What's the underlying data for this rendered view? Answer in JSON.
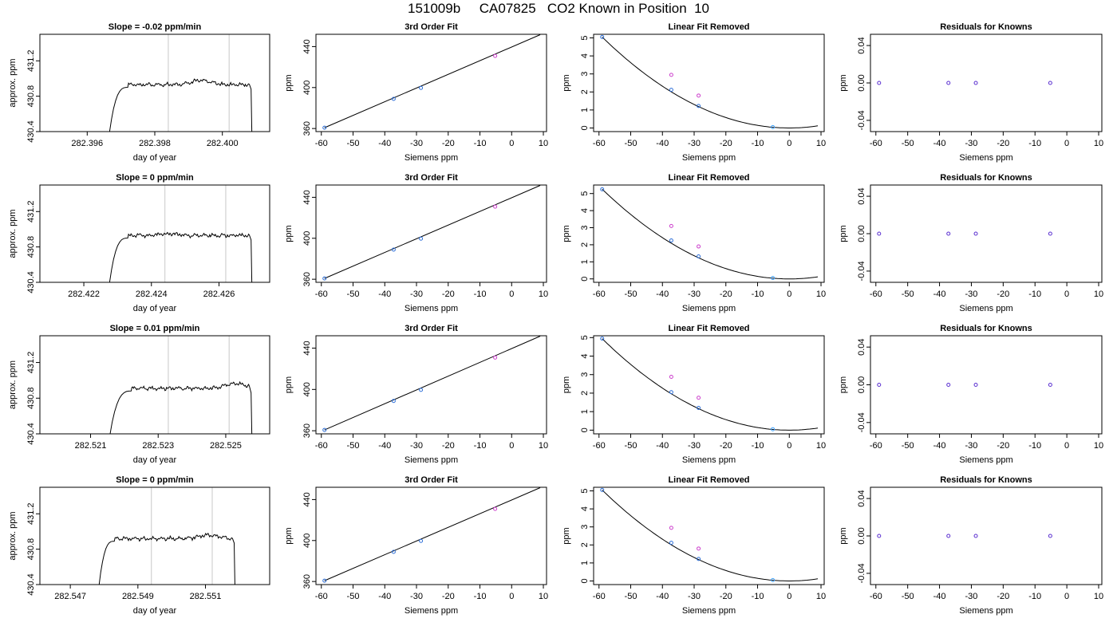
{
  "figure_title": "151009b     CA07825   CO2 Known in Position  10",
  "chart_data": [
    {
      "row": 0,
      "type": "line",
      "title": "Slope =  -0.02  ppm/min",
      "xlabel": "day of year",
      "ylabel": "approx. ppm",
      "xlim": [
        282.3946,
        282.4014
      ],
      "ylim": [
        430.4,
        431.5
      ],
      "xticks": [
        282.396,
        282.398,
        282.4
      ],
      "xticklabels": [
        "282.396",
        "282.398",
        "282.400"
      ],
      "yticks": [
        430.4,
        430.8,
        431.2
      ],
      "yticklabels": [
        "430.4",
        "430.8",
        "431.2"
      ],
      "vlines": [
        282.3984,
        282.4002
      ],
      "trace": {
        "x_start": 282.3966,
        "x_rise": 282.3969,
        "x_plateau": 282.3972,
        "x_end": 282.4008,
        "x_drop": 282.40085,
        "level": 430.93,
        "bump_x": 282.3994,
        "bump": 0.05,
        "seed": 1
      },
      "grid": false
    },
    {
      "row": 0,
      "type": "scatter",
      "title": "3rd Order Fit",
      "xlabel": "Siemens ppm",
      "ylabel": "ppm",
      "xlim": [
        -61.7,
        11
      ],
      "ylim": [
        357,
        452
      ],
      "xticks": [
        -60,
        -50,
        -40,
        -30,
        -20,
        -10,
        0,
        10
      ],
      "xticklabels": [
        "-60",
        "-50",
        "-40",
        "-30",
        "-20",
        "-10",
        "0",
        "10"
      ],
      "yticks": [
        360,
        400,
        440
      ],
      "yticklabels": [
        "360",
        "400",
        "440"
      ],
      "line": [
        [
          -59,
          360.8
        ],
        [
          9,
          451.6
        ]
      ],
      "points": [
        {
          "x": -59,
          "y": 360.8,
          "color": "#2d6fd8"
        },
        {
          "x": -37.2,
          "y": 388.9,
          "color": "#2d6fd8"
        },
        {
          "x": -28.6,
          "y": 399.6,
          "color": "#2d6fd8"
        },
        {
          "x": -5.2,
          "y": 430.9,
          "color": "#cc3fcc"
        }
      ],
      "grid": false
    },
    {
      "row": 0,
      "type": "scatter",
      "title": "Linear Fit Removed",
      "xlabel": "Siemens ppm",
      "ylabel": "ppm",
      "xlim": [
        -61.7,
        11
      ],
      "ylim": [
        -0.2,
        5.2
      ],
      "xticks": [
        -60,
        -50,
        -40,
        -30,
        -20,
        -10,
        0,
        10
      ],
      "xticklabels": [
        "-60",
        "-50",
        "-40",
        "-30",
        "-20",
        "-10",
        "0",
        "10"
      ],
      "yticks": [
        0,
        1,
        2,
        3,
        4,
        5
      ],
      "yticklabels": [
        "0",
        "1",
        "2",
        "3",
        "4",
        "5"
      ],
      "curve": {
        "a": 0.00145,
        "b": 0,
        "c": 0,
        "xmin": -59,
        "xmax": 9
      },
      "points": [
        {
          "x": -59,
          "y": 5.05,
          "color": "#2d6fd8"
        },
        {
          "x": -37.2,
          "y": 2.12,
          "color": "#2d6fd8"
        },
        {
          "x": -28.6,
          "y": 1.22,
          "color": "#2d6fd8"
        },
        {
          "x": -5.2,
          "y": 0.05,
          "color": "#3aa0ff"
        },
        {
          "x": -37.2,
          "y": 2.95,
          "color": "#cc3fcc"
        },
        {
          "x": -28.6,
          "y": 1.8,
          "color": "#cc3fcc"
        }
      ],
      "grid": false
    },
    {
      "row": 0,
      "type": "scatter",
      "title": "Residuals for Knowns",
      "xlabel": "Siemens ppm",
      "ylabel": "ppm",
      "xlim": [
        -61.7,
        11
      ],
      "ylim": [
        -0.052,
        0.052
      ],
      "xticks": [
        -60,
        -50,
        -40,
        -30,
        -20,
        -10,
        0,
        10
      ],
      "xticklabels": [
        "-60",
        "-50",
        "-40",
        "-30",
        "-20",
        "-10",
        "0",
        "10"
      ],
      "yticks": [
        -0.04,
        0,
        0.04
      ],
      "yticklabels": [
        "-0.04",
        "0.00",
        "0.04"
      ],
      "points": [
        {
          "x": -59,
          "y": 0,
          "color": "#5a2fd0"
        },
        {
          "x": -37.2,
          "y": 0,
          "color": "#5a2fd0"
        },
        {
          "x": -28.6,
          "y": 0,
          "color": "#5a2fd0"
        },
        {
          "x": -5.2,
          "y": 0,
          "color": "#5a2fd0"
        }
      ],
      "grid": false
    },
    {
      "row": 1,
      "type": "line",
      "title": "Slope =  0  ppm/min",
      "xlabel": "day of year",
      "ylabel": "approx. ppm",
      "xlim": [
        282.4207,
        282.4275
      ],
      "ylim": [
        430.4,
        431.5
      ],
      "xticks": [
        282.422,
        282.424,
        282.426
      ],
      "xticklabels": [
        "282.422",
        "282.424",
        "282.426"
      ],
      "yticks": [
        430.4,
        430.8,
        431.2
      ],
      "yticklabels": [
        "430.4",
        "430.8",
        "431.2"
      ],
      "vlines": [
        282.4244,
        282.4262
      ],
      "trace": {
        "x_start": 282.4227,
        "x_rise": 282.4229,
        "x_plateau": 282.4233,
        "x_end": 282.4269,
        "x_drop": 282.42695,
        "level": 430.93,
        "bump_x": 282.4245,
        "bump": 0.02,
        "seed": 2
      },
      "grid": false
    },
    {
      "row": 1,
      "type": "scatter",
      "title": "3rd Order Fit",
      "xlabel": "Siemens ppm",
      "ylabel": "ppm",
      "xlim": [
        -61.7,
        11
      ],
      "ylim": [
        357,
        452
      ],
      "xticks": [
        -60,
        -50,
        -40,
        -30,
        -20,
        -10,
        0,
        10
      ],
      "xticklabels": [
        "-60",
        "-50",
        "-40",
        "-30",
        "-20",
        "-10",
        "0",
        "10"
      ],
      "yticks": [
        360,
        400,
        440
      ],
      "yticklabels": [
        "360",
        "400",
        "440"
      ],
      "line": [
        [
          -59,
          360.8
        ],
        [
          9,
          451.6
        ]
      ],
      "points": [
        {
          "x": -59,
          "y": 360.8,
          "color": "#2d6fd8"
        },
        {
          "x": -37.2,
          "y": 388.9,
          "color": "#2d6fd8"
        },
        {
          "x": -28.6,
          "y": 399.6,
          "color": "#2d6fd8"
        },
        {
          "x": -5.2,
          "y": 430.9,
          "color": "#cc3fcc"
        }
      ],
      "grid": false
    },
    {
      "row": 1,
      "type": "scatter",
      "title": "Linear Fit Removed",
      "xlabel": "Siemens ppm",
      "ylabel": "ppm",
      "xlim": [
        -61.7,
        11
      ],
      "ylim": [
        -0.2,
        5.5
      ],
      "xticks": [
        -60,
        -50,
        -40,
        -30,
        -20,
        -10,
        0,
        10
      ],
      "xticklabels": [
        "-60",
        "-50",
        "-40",
        "-30",
        "-20",
        "-10",
        "0",
        "10"
      ],
      "yticks": [
        0,
        1,
        2,
        3,
        4,
        5
      ],
      "yticklabels": [
        "0",
        "1",
        "2",
        "3",
        "4",
        "5"
      ],
      "curve": {
        "a": 0.00151,
        "b": 0,
        "c": 0,
        "xmin": -59,
        "xmax": 9
      },
      "points": [
        {
          "x": -59,
          "y": 5.25,
          "color": "#2d6fd8"
        },
        {
          "x": -37.2,
          "y": 2.25,
          "color": "#2d6fd8"
        },
        {
          "x": -28.6,
          "y": 1.32,
          "color": "#2d6fd8"
        },
        {
          "x": -5.2,
          "y": 0.05,
          "color": "#3aa0ff"
        },
        {
          "x": -37.2,
          "y": 3.1,
          "color": "#cc3fcc"
        },
        {
          "x": -28.6,
          "y": 1.9,
          "color": "#cc3fcc"
        }
      ],
      "grid": false
    },
    {
      "row": 1,
      "type": "scatter",
      "title": "Residuals for Knowns",
      "xlabel": "Siemens ppm",
      "ylabel": "ppm",
      "xlim": [
        -61.7,
        11
      ],
      "ylim": [
        -0.052,
        0.052
      ],
      "xticks": [
        -60,
        -50,
        -40,
        -30,
        -20,
        -10,
        0,
        10
      ],
      "xticklabels": [
        "-60",
        "-50",
        "-40",
        "-30",
        "-20",
        "-10",
        "0",
        "10"
      ],
      "yticks": [
        -0.04,
        0,
        0.04
      ],
      "yticklabels": [
        "-0.04",
        "0.00",
        "0.04"
      ],
      "points": [
        {
          "x": -59,
          "y": 0,
          "color": "#5a2fd0"
        },
        {
          "x": -37.2,
          "y": 0,
          "color": "#5a2fd0"
        },
        {
          "x": -28.6,
          "y": 0,
          "color": "#5a2fd0"
        },
        {
          "x": -5.2,
          "y": 0,
          "color": "#5a2fd0"
        }
      ],
      "grid": false
    },
    {
      "row": 2,
      "type": "line",
      "title": "Slope =  0.01  ppm/min",
      "xlabel": "day of year",
      "ylabel": "approx. ppm",
      "xlim": [
        282.5195,
        282.5263
      ],
      "ylim": [
        430.4,
        431.5
      ],
      "xticks": [
        282.521,
        282.523,
        282.525
      ],
      "xticklabels": [
        "282.521",
        "282.523",
        "282.525"
      ],
      "yticks": [
        430.4,
        430.8,
        431.2
      ],
      "yticklabels": [
        "430.4",
        "430.8",
        "431.2"
      ],
      "vlines": [
        282.5233,
        282.5251
      ],
      "trace": {
        "x_start": 282.5215,
        "x_rise": 282.5218,
        "x_plateau": 282.5222,
        "x_end": 282.5257,
        "x_drop": 282.52575,
        "level": 430.91,
        "bump_x": 282.5253,
        "bump": 0.06,
        "seed": 3
      },
      "grid": false
    },
    {
      "row": 2,
      "type": "scatter",
      "title": "3rd Order Fit",
      "xlabel": "Siemens ppm",
      "ylabel": "ppm",
      "xlim": [
        -61.7,
        11
      ],
      "ylim": [
        357,
        452
      ],
      "xticks": [
        -60,
        -50,
        -40,
        -30,
        -20,
        -10,
        0,
        10
      ],
      "xticklabels": [
        "-60",
        "-50",
        "-40",
        "-30",
        "-20",
        "-10",
        "0",
        "10"
      ],
      "yticks": [
        360,
        400,
        440
      ],
      "yticklabels": [
        "360",
        "400",
        "440"
      ],
      "line": [
        [
          -59,
          360.8
        ],
        [
          9,
          451.6
        ]
      ],
      "points": [
        {
          "x": -59,
          "y": 360.8,
          "color": "#2d6fd8"
        },
        {
          "x": -37.2,
          "y": 388.9,
          "color": "#2d6fd8"
        },
        {
          "x": -28.6,
          "y": 399.6,
          "color": "#2d6fd8"
        },
        {
          "x": -5.2,
          "y": 430.9,
          "color": "#cc3fcc"
        }
      ],
      "grid": false
    },
    {
      "row": 2,
      "type": "scatter",
      "title": "Linear Fit Removed",
      "xlabel": "Siemens ppm",
      "ylabel": "ppm",
      "xlim": [
        -61.7,
        11
      ],
      "ylim": [
        -0.2,
        5.1
      ],
      "xticks": [
        -60,
        -50,
        -40,
        -30,
        -20,
        -10,
        0,
        10
      ],
      "xticklabels": [
        "-60",
        "-50",
        "-40",
        "-30",
        "-20",
        "-10",
        "0",
        "10"
      ],
      "yticks": [
        0,
        1,
        2,
        3,
        4,
        5
      ],
      "yticklabels": [
        "0",
        "1",
        "2",
        "3",
        "4",
        "5"
      ],
      "curve": {
        "a": 0.00142,
        "b": 0,
        "c": 0,
        "xmin": -59,
        "xmax": 9
      },
      "points": [
        {
          "x": -59,
          "y": 4.95,
          "color": "#2d6fd8"
        },
        {
          "x": -37.2,
          "y": 2.05,
          "color": "#2d6fd8"
        },
        {
          "x": -28.6,
          "y": 1.2,
          "color": "#2d6fd8"
        },
        {
          "x": -5.2,
          "y": 0.05,
          "color": "#3aa0ff"
        },
        {
          "x": -37.2,
          "y": 2.88,
          "color": "#cc3fcc"
        },
        {
          "x": -28.6,
          "y": 1.75,
          "color": "#cc3fcc"
        }
      ],
      "grid": false
    },
    {
      "row": 2,
      "type": "scatter",
      "title": "Residuals for Knowns",
      "xlabel": "Siemens ppm",
      "ylabel": "ppm",
      "xlim": [
        -61.7,
        11
      ],
      "ylim": [
        -0.052,
        0.052
      ],
      "xticks": [
        -60,
        -50,
        -40,
        -30,
        -20,
        -10,
        0,
        10
      ],
      "xticklabels": [
        "-60",
        "-50",
        "-40",
        "-30",
        "-20",
        "-10",
        "0",
        "10"
      ],
      "yticks": [
        -0.04,
        0,
        0.04
      ],
      "yticklabels": [
        "-0.04",
        "0.00",
        "0.04"
      ],
      "points": [
        {
          "x": -59,
          "y": 0,
          "color": "#5a2fd0"
        },
        {
          "x": -37.2,
          "y": 0,
          "color": "#5a2fd0"
        },
        {
          "x": -28.6,
          "y": 0,
          "color": "#5a2fd0"
        },
        {
          "x": -5.2,
          "y": 0,
          "color": "#5a2fd0"
        }
      ],
      "grid": false
    },
    {
      "row": 3,
      "type": "line",
      "title": "Slope =  0  ppm/min",
      "xlabel": "day of year",
      "ylabel": "approx. ppm",
      "xlim": [
        282.5461,
        282.5529
      ],
      "ylim": [
        430.4,
        431.5
      ],
      "xticks": [
        282.547,
        282.549,
        282.551
      ],
      "xticklabels": [
        "282.547",
        "282.549",
        "282.551"
      ],
      "yticks": [
        430.4,
        430.8,
        431.2
      ],
      "yticklabels": [
        "430.4",
        "430.8",
        "431.2"
      ],
      "vlines": [
        282.5494,
        282.5512
      ],
      "trace": {
        "x_start": 282.5478,
        "x_rise": 282.548,
        "x_plateau": 282.5483,
        "x_end": 282.5518,
        "x_drop": 282.55185,
        "level": 430.92,
        "bump_x": 282.5511,
        "bump": 0.04,
        "seed": 4
      },
      "grid": false
    },
    {
      "row": 3,
      "type": "scatter",
      "title": "3rd Order Fit",
      "xlabel": "Siemens ppm",
      "ylabel": "ppm",
      "xlim": [
        -61.7,
        11
      ],
      "ylim": [
        357,
        452
      ],
      "xticks": [
        -60,
        -50,
        -40,
        -30,
        -20,
        -10,
        0,
        10
      ],
      "xticklabels": [
        "-60",
        "-50",
        "-40",
        "-30",
        "-20",
        "-10",
        "0",
        "10"
      ],
      "yticks": [
        360,
        400,
        440
      ],
      "yticklabels": [
        "360",
        "400",
        "440"
      ],
      "line": [
        [
          -59,
          360.8
        ],
        [
          9,
          451.6
        ]
      ],
      "points": [
        {
          "x": -59,
          "y": 360.8,
          "color": "#2d6fd8"
        },
        {
          "x": -37.2,
          "y": 388.9,
          "color": "#2d6fd8"
        },
        {
          "x": -28.6,
          "y": 399.6,
          "color": "#2d6fd8"
        },
        {
          "x": -5.2,
          "y": 430.9,
          "color": "#cc3fcc"
        }
      ],
      "grid": false
    },
    {
      "row": 3,
      "type": "scatter",
      "title": "Linear Fit Removed",
      "xlabel": "Siemens ppm",
      "ylabel": "ppm",
      "xlim": [
        -61.7,
        11
      ],
      "ylim": [
        -0.2,
        5.2
      ],
      "xticks": [
        -60,
        -50,
        -40,
        -30,
        -20,
        -10,
        0,
        10
      ],
      "xticklabels": [
        "-60",
        "-50",
        "-40",
        "-30",
        "-20",
        "-10",
        "0",
        "10"
      ],
      "yticks": [
        0,
        1,
        2,
        3,
        4,
        5
      ],
      "yticklabels": [
        "0",
        "1",
        "2",
        "3",
        "4",
        "5"
      ],
      "curve": {
        "a": 0.00145,
        "b": 0,
        "c": 0,
        "xmin": -59,
        "xmax": 9
      },
      "points": [
        {
          "x": -59,
          "y": 5.05,
          "color": "#2d6fd8"
        },
        {
          "x": -37.2,
          "y": 2.12,
          "color": "#2d6fd8"
        },
        {
          "x": -28.6,
          "y": 1.22,
          "color": "#2d6fd8"
        },
        {
          "x": -5.2,
          "y": 0.05,
          "color": "#3aa0ff"
        },
        {
          "x": -37.2,
          "y": 2.95,
          "color": "#cc3fcc"
        },
        {
          "x": -28.6,
          "y": 1.8,
          "color": "#cc3fcc"
        }
      ],
      "grid": false
    },
    {
      "row": 3,
      "type": "scatter",
      "title": "Residuals for Knowns",
      "xlabel": "Siemens ppm",
      "ylabel": "ppm",
      "xlim": [
        -61.7,
        11
      ],
      "ylim": [
        -0.052,
        0.052
      ],
      "xticks": [
        -60,
        -50,
        -40,
        -30,
        -20,
        -10,
        0,
        10
      ],
      "xticklabels": [
        "-60",
        "-50",
        "-40",
        "-30",
        "-20",
        "-10",
        "0",
        "10"
      ],
      "yticks": [
        -0.04,
        0,
        0.04
      ],
      "yticklabels": [
        "-0.04",
        "0.00",
        "0.04"
      ],
      "points": [
        {
          "x": -59,
          "y": 0,
          "color": "#5a2fd0"
        },
        {
          "x": -37.2,
          "y": 0,
          "color": "#5a2fd0"
        },
        {
          "x": -28.6,
          "y": 0,
          "color": "#5a2fd0"
        },
        {
          "x": -5.2,
          "y": 0,
          "color": "#5a2fd0"
        }
      ],
      "grid": false
    }
  ]
}
